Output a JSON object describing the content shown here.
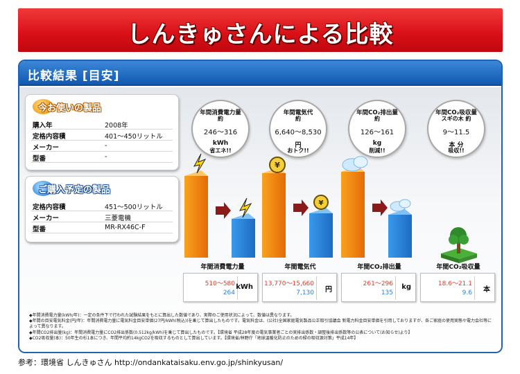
{
  "banner": {
    "title": "しんきゅさんによる比較"
  },
  "panel": {
    "title": "比較結果 [目安]"
  },
  "current": {
    "heading": "今お使いの製品",
    "rows": [
      {
        "key": "購入年",
        "value": "2008年"
      },
      {
        "key": "定格内容積",
        "value": "401〜450リットル"
      },
      {
        "key": "メーカー",
        "value": "-"
      },
      {
        "key": "型番",
        "value": "-"
      }
    ]
  },
  "planned": {
    "heading": "ご購入予定の製品",
    "rows": [
      {
        "key": "定格内容積",
        "value": "451〜500リットル"
      },
      {
        "key": "メーカー",
        "value": "三菱電機"
      },
      {
        "key": "型番",
        "value": "MR-RX46C-F"
      }
    ]
  },
  "bubbles": [
    {
      "title": "年間消費電力量",
      "sub": "約",
      "range": "246〜316",
      "unit": "kWh",
      "note": "省エネ!!"
    },
    {
      "title": "年間電気代",
      "sub": "約",
      "range": "6,640〜8,530",
      "unit": "円",
      "note": "おトク!!"
    },
    {
      "title": "年間CO₂排出量",
      "sub": "約",
      "range": "126〜161",
      "unit": "kg",
      "note": "削減!!"
    },
    {
      "title": "年間CO₂吸収量",
      "sub": "スギの木 約",
      "range": "9〜11.5",
      "unit": "本 分",
      "note": "吸収!!"
    }
  ],
  "chart_data": {
    "type": "bar",
    "categories": [
      "年間消費電力量",
      "年間電気代",
      "年間CO₂排出量",
      "年間CO₂吸収量"
    ],
    "series": [
      {
        "values_text": [
          "510〜580",
          "13,770〜15,660",
          "261〜296",
          "18.6〜21.1"
        ]
      },
      {
        "values_text": [
          "264",
          "7,130",
          "135",
          "9.6"
        ]
      }
    ],
    "units": [
      "kWh",
      "円",
      "kg",
      "本"
    ],
    "colors": {
      "current": "#f08a12",
      "planned": "#2a7fd6",
      "arrow": "#8b1a1a"
    }
  },
  "notes": [
    "◆年間消費電力量(kWh/年)：一定の条件下で行われた試験結果をもとに算出した数値であり、実際のご使用状況によって、数値は異なります。",
    "◆年間の目安電気料金(円/年)：年間消費電力量に電気料金目安単価(27円/kWh(税込))を乗じて算出したものです。電気料金は、(公社)全国家庭電気製品公正取引協議会 新電力料金目安単価を引用しておりますが、各ご家庭の使用実態や電力会社等によって異なります。",
    "◆年間CO2排出量(kg)：年間消費電力量にCO2排出係数(0.512kg/kWh)を乗じて算出したものです。【環境省 平成28年度の電気事業者ごとの実排出係数・調整後排出係数等の公表について(お知らせ)より】",
    "◆CO2吸収量(本)：50年生の杉1本につき、年間平均約14kgCO2を吸収するものとして算出しています。【環境省/林野庁「地球温暖化防止のための緑の吸収源対策」平成14年】"
  ],
  "footer": {
    "text": "参考：環境省 しんきゅさん http://ondankataisaku.env.go.jp/shinkyusan/"
  }
}
